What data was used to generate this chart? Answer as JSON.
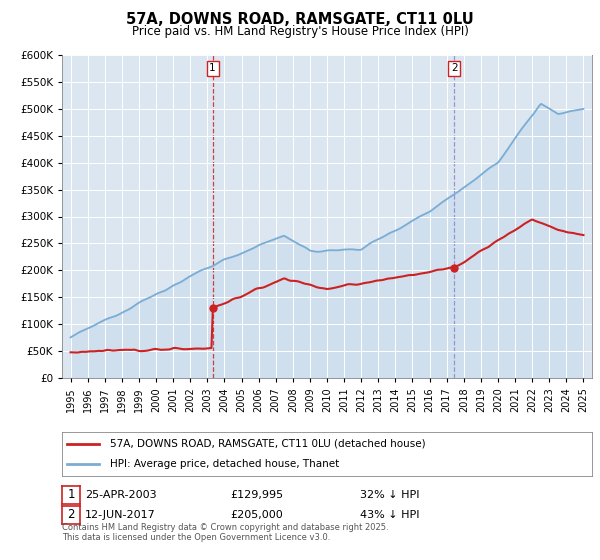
{
  "title": "57A, DOWNS ROAD, RAMSGATE, CT11 0LU",
  "subtitle": "Price paid vs. HM Land Registry's House Price Index (HPI)",
  "ytick_values": [
    0,
    50000,
    100000,
    150000,
    200000,
    250000,
    300000,
    350000,
    400000,
    450000,
    500000,
    550000,
    600000
  ],
  "hpi_color": "#7aadd4",
  "hpi_fill_color": "#c5d9ee",
  "price_color": "#cc2222",
  "marker1_year": 2003.31,
  "marker1_price": 129995,
  "marker2_year": 2017.44,
  "marker2_price": 205000,
  "legend_line1": "57A, DOWNS ROAD, RAMSGATE, CT11 0LU (detached house)",
  "legend_line2": "HPI: Average price, detached house, Thanet",
  "annotation1_date": "25-APR-2003",
  "annotation1_price": "£129,995",
  "annotation1_hpi": "32% ↓ HPI",
  "annotation2_date": "12-JUN-2017",
  "annotation2_price": "£205,000",
  "annotation2_hpi": "43% ↓ HPI",
  "footer": "Contains HM Land Registry data © Crown copyright and database right 2025.\nThis data is licensed under the Open Government Licence v3.0.",
  "xmin": 1994.5,
  "xmax": 2025.5,
  "ymin": 0,
  "ymax": 600000,
  "bg_color": "#dce6f0"
}
